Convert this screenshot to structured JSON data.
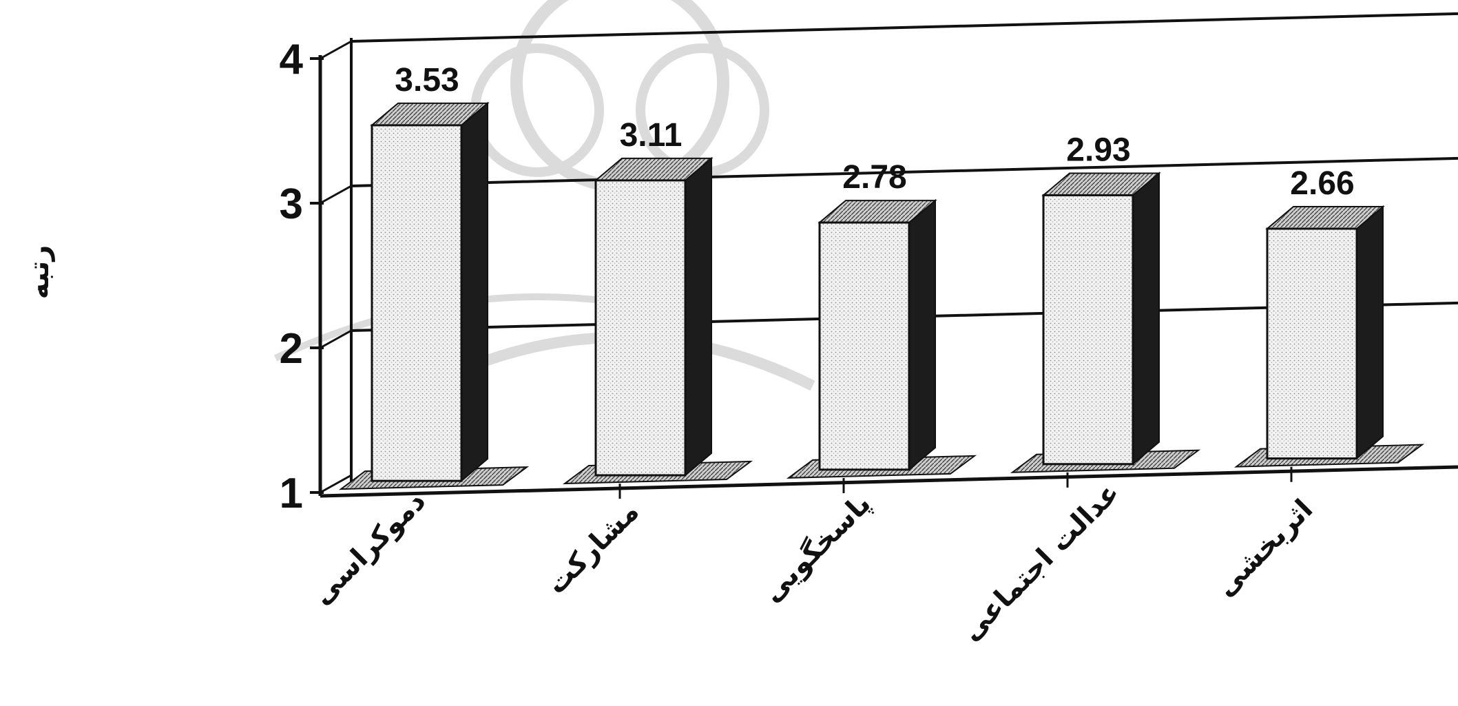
{
  "chart_data": {
    "type": "bar",
    "categories": [
      "دموکراسی",
      "مشارکت",
      "پاسخگویی",
      "عدالت اجتماعی",
      "اثربخشی"
    ],
    "values": [
      3.53,
      3.11,
      2.78,
      2.93,
      2.66
    ],
    "data_labels": [
      "3.53",
      "3.11",
      "2.78",
      "2.93",
      "2.66"
    ],
    "ylabel": "رتبه",
    "ylim": [
      1,
      4
    ],
    "y_ticks": [
      "1",
      "2",
      "3",
      "4"
    ],
    "grid": true,
    "style": "3d"
  },
  "colors": {
    "bar_front": "#e8e8e8",
    "bar_side": "#1c1c1c",
    "bar_top": "#9a9a9a",
    "axis": "#111111",
    "watermark": "#d8d8d8"
  }
}
